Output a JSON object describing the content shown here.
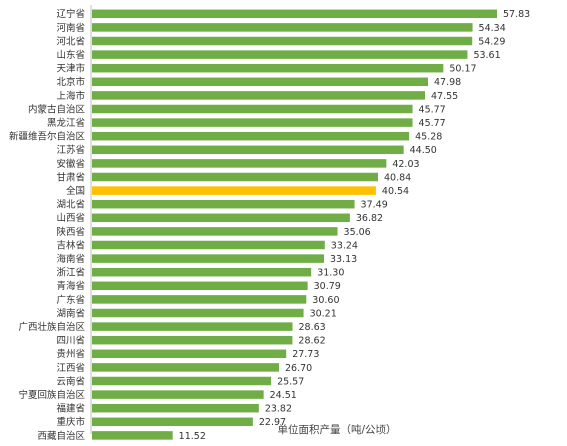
{
  "chart_data": {
    "type": "bar",
    "orientation": "horizontal",
    "xlabel": "单位面积产量（吨/公顷）",
    "categories": [
      "辽宁省",
      "河南省",
      "河北省",
      "山东省",
      "天津市",
      "北京市",
      "上海市",
      "内蒙古自治区",
      "黑龙江省",
      "新疆维吾尔自治区",
      "江苏省",
      "安徽省",
      "甘肃省",
      "全国",
      "湖北省",
      "山西省",
      "陕西省",
      "吉林省",
      "海南省",
      "浙江省",
      "青海省",
      "广东省",
      "湖南省",
      "广西壮族自治区",
      "四川省",
      "贵州省",
      "江西省",
      "云南省",
      "宁夏回族自治区",
      "福建省",
      "重庆市",
      "西藏自治区"
    ],
    "values": [
      57.83,
      54.34,
      54.29,
      53.61,
      50.17,
      47.98,
      47.55,
      45.77,
      45.77,
      45.28,
      44.5,
      42.03,
      40.84,
      40.54,
      37.49,
      36.82,
      35.06,
      33.24,
      33.13,
      31.3,
      30.79,
      30.6,
      30.21,
      28.63,
      28.62,
      27.73,
      26.7,
      25.57,
      24.51,
      23.82,
      22.97,
      11.52
    ],
    "value_labels": [
      "57.83",
      "54.34",
      "54.29",
      "53.61",
      "50.17",
      "47.98",
      "47.55",
      "45.77",
      "45.77",
      "45.28",
      "44.50",
      "42.03",
      "40.84",
      "40.54",
      "37.49",
      "36.82",
      "35.06",
      "33.24",
      "33.13",
      "31.30",
      "30.79",
      "30.60",
      "30.21",
      "28.63",
      "28.62",
      "27.73",
      "26.70",
      "25.57",
      "24.51",
      "23.82",
      "22.97",
      "11.52"
    ],
    "highlight_category": "全国",
    "colors": {
      "bar": "#70AD47",
      "highlight": "#FFC000",
      "axis": "#BFBFBF"
    },
    "xlim": [
      0,
      57.83
    ],
    "grid": false,
    "legend": "none"
  }
}
